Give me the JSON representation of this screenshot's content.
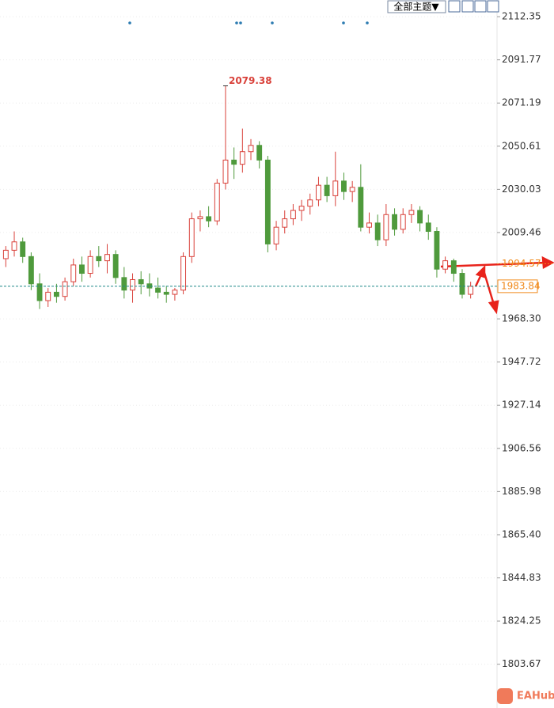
{
  "toolbar": {
    "theme_menu": "全部主题▼"
  },
  "watermark": "EAHub",
  "chart_data": {
    "type": "candlestick",
    "up_color": "#d9413a",
    "down_color": "#4f9a3c",
    "ylim": [
      1782.8,
      2120.3
    ],
    "yticks": [
      2112.35,
      2091.77,
      2071.19,
      2050.61,
      2030.03,
      2009.46,
      {
        "value": 1968.3,
        "label": "1968.30"
      },
      1947.72,
      1927.14,
      1906.56,
      1885.98,
      {
        "value": 1865.4,
        "label": "1865.40"
      },
      1844.83,
      1824.25,
      1803.67
    ],
    "grid": true,
    "reference_price": 1994.57,
    "candles": [
      [
        1997,
        2003,
        1993,
        2001
      ],
      [
        2001,
        2010,
        1998,
        2005
      ],
      [
        2005,
        2007,
        1995,
        1998
      ],
      [
        1998,
        2000,
        1982,
        1985
      ],
      [
        1985,
        1990,
        1973,
        1977
      ],
      [
        1977,
        1983,
        1974,
        1981
      ],
      [
        1981,
        1985,
        1976,
        1979
      ],
      [
        1979,
        1988,
        1977,
        1986
      ],
      [
        1986,
        1997,
        1984,
        1994
      ],
      [
        1994,
        1998,
        1986,
        1990
      ],
      [
        1990,
        2001,
        1988,
        1998
      ],
      [
        1998,
        2003,
        1993,
        1996
      ],
      [
        1996,
        2004,
        1990,
        1999
      ],
      [
        1999,
        2001,
        1985,
        1988
      ],
      [
        1988,
        1993,
        1978,
        1982
      ],
      [
        1982,
        1990,
        1976,
        1987
      ],
      [
        1987,
        1991,
        1980,
        1985
      ],
      [
        1985,
        1990,
        1979,
        1983
      ],
      [
        1983,
        1988,
        1978,
        1981
      ],
      [
        1981,
        1984,
        1976,
        1980
      ],
      [
        1980,
        1983,
        1977,
        1982
      ],
      [
        1982,
        2000,
        1980,
        1998
      ],
      [
        1998,
        2019,
        1995,
        2016
      ],
      [
        2016,
        2020,
        2010,
        2017
      ],
      [
        2017,
        2022,
        2012,
        2015
      ],
      [
        2015,
        2035,
        2013,
        2033
      ],
      [
        2033,
        2079.38,
        2030,
        2044
      ],
      [
        2044,
        2050,
        2035,
        2042
      ],
      [
        2042,
        2059,
        2038,
        2048
      ],
      [
        2048,
        2054,
        2044,
        2051
      ],
      [
        2051,
        2053,
        2040,
        2044
      ],
      [
        2044,
        2046,
        2000,
        2004
      ],
      [
        2004,
        2015,
        2001,
        2012
      ],
      [
        2012,
        2020,
        2009,
        2016
      ],
      [
        2016,
        2023,
        2013,
        2020
      ],
      [
        2020,
        2025,
        2015,
        2022
      ],
      [
        2022,
        2028,
        2018,
        2025
      ],
      [
        2025,
        2036,
        2022,
        2032
      ],
      [
        2032,
        2036,
        2024,
        2027
      ],
      [
        2027,
        2048,
        2022,
        2034
      ],
      [
        2034,
        2038,
        2025,
        2029
      ],
      [
        2029,
        2034,
        2024,
        2031
      ],
      [
        2031,
        2042,
        2010,
        2012
      ],
      [
        2012,
        2019,
        2009,
        2014
      ],
      [
        2014,
        2018,
        2003,
        2006
      ],
      [
        2006,
        2023,
        2003,
        2018
      ],
      [
        2018,
        2021,
        2008,
        2011
      ],
      [
        2011,
        2021,
        2009,
        2018
      ],
      [
        2018,
        2023,
        2014,
        2020
      ],
      [
        2020,
        2022,
        2010,
        2014
      ],
      [
        2014,
        2018,
        2006,
        2010
      ],
      [
        2010,
        2012,
        1988,
        1992
      ],
      [
        1992,
        1998,
        1990,
        1996
      ],
      [
        1996,
        1997,
        1986,
        1990
      ],
      [
        1990,
        1992,
        1978,
        1980
      ],
      [
        1980,
        1986,
        1978,
        1983.84
      ]
    ]
  }
}
